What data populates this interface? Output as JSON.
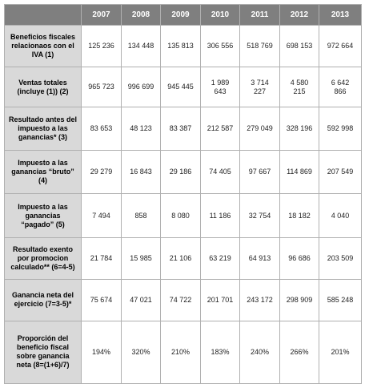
{
  "table": {
    "header": [
      "2007",
      "2008",
      "2009",
      "2010",
      "2011",
      "2012",
      "2013"
    ],
    "rows": [
      {
        "label": "Beneficios fiscales relacionaos con el IVA (1)",
        "values": [
          "125 236",
          "134 448",
          "135 813",
          "306 556",
          "518 769",
          "698 153",
          "972 664"
        ]
      },
      {
        "label": "Ventas totales (incluye (1)) (2)",
        "values": [
          "965 723",
          "996 699",
          "945 445",
          "1 989 643",
          "3 714 227",
          "4 580 215",
          "6 642 866"
        ]
      },
      {
        "label": "Resultado antes del impuesto a las ganancias* (3)",
        "values": [
          "83 653",
          "48 123",
          "83 387",
          "212 587",
          "279 049",
          "328 196",
          "592 998"
        ]
      },
      {
        "label": "Impuesto a las ganancias “bruto” (4)",
        "values": [
          "29 279",
          "16 843",
          "29 186",
          "74 405",
          "97 667",
          "114 869",
          "207 549"
        ]
      },
      {
        "label": "Impuesto a las ganancias “pagado” (5)",
        "values": [
          "7 494",
          "858",
          "8 080",
          "11 186",
          "32 754",
          "18 182",
          "4 040"
        ]
      },
      {
        "label": "Resultado exento por promocion calculado** (6=4-5)",
        "values": [
          "21 784",
          "15 985",
          "21 106",
          "63 219",
          "64 913",
          "96 686",
          "203 509"
        ]
      },
      {
        "label": "Ganancia neta del ejercicio (7=3-5)*",
        "values": [
          "75 674",
          "47 021",
          "74 722",
          "201 701",
          "243 172",
          "298 909",
          "585 248"
        ]
      },
      {
        "label": "Proporción del beneficio fiscal sobre ganancia neta (8=(1+6)/7)",
        "values": [
          "194%",
          "320%",
          "210%",
          "183%",
          "240%",
          "266%",
          "201%"
        ]
      }
    ]
  }
}
